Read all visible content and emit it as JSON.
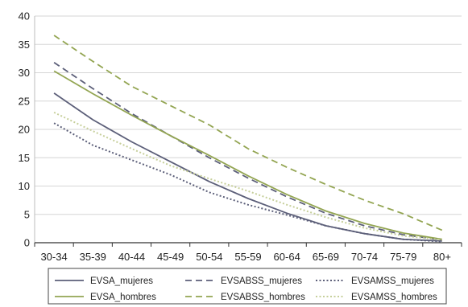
{
  "chart_data": {
    "type": "line",
    "title": "",
    "xlabel": "",
    "ylabel": "",
    "categories": [
      "30-34",
      "35-39",
      "40-44",
      "45-49",
      "50-54",
      "55-59",
      "60-64",
      "65-69",
      "70-74",
      "75-79",
      "80+"
    ],
    "ylim": [
      0,
      40
    ],
    "yticks": [
      0,
      5,
      10,
      15,
      20,
      25,
      30,
      35,
      40
    ],
    "grid": true,
    "legend_position": "bottom",
    "series": [
      {
        "name": "EVSA_mujeres",
        "color": "#5c5f79",
        "dash": "solid",
        "values": [
          26.4,
          21.7,
          17.8,
          14.3,
          10.8,
          7.8,
          5.2,
          3.0,
          1.6,
          0.6,
          0.3
        ]
      },
      {
        "name": "EVSABSS_mujeres",
        "color": "#5c5f79",
        "dash": "dashed",
        "values": [
          31.8,
          27.2,
          22.8,
          18.9,
          15.0,
          11.4,
          8.1,
          5.2,
          3.0,
          1.4,
          0.5
        ]
      },
      {
        "name": "EVSAMSS_mujeres",
        "color": "#5c5f79",
        "dash": "dotted",
        "values": [
          21.1,
          17.2,
          14.6,
          12.0,
          8.9,
          6.7,
          4.9,
          3.0,
          1.6,
          0.6,
          0.2
        ]
      },
      {
        "name": "EVSA_hombres",
        "color": "#93a552",
        "dash": "solid",
        "values": [
          30.3,
          26.3,
          22.5,
          18.9,
          15.4,
          11.8,
          8.5,
          5.6,
          3.4,
          1.7,
          0.6
        ]
      },
      {
        "name": "EVSABSS_hombres",
        "color": "#93a552",
        "dash": "dashed",
        "values": [
          36.6,
          32.0,
          27.6,
          24.2,
          20.8,
          16.6,
          13.3,
          10.3,
          7.5,
          5.1,
          2.2
        ]
      },
      {
        "name": "EVSAMSS_hombres",
        "color": "#c6cf9a",
        "dash": "dotted",
        "values": [
          23.0,
          19.7,
          16.6,
          13.6,
          11.3,
          9.1,
          6.7,
          4.5,
          2.6,
          1.2,
          0.5
        ]
      }
    ]
  }
}
